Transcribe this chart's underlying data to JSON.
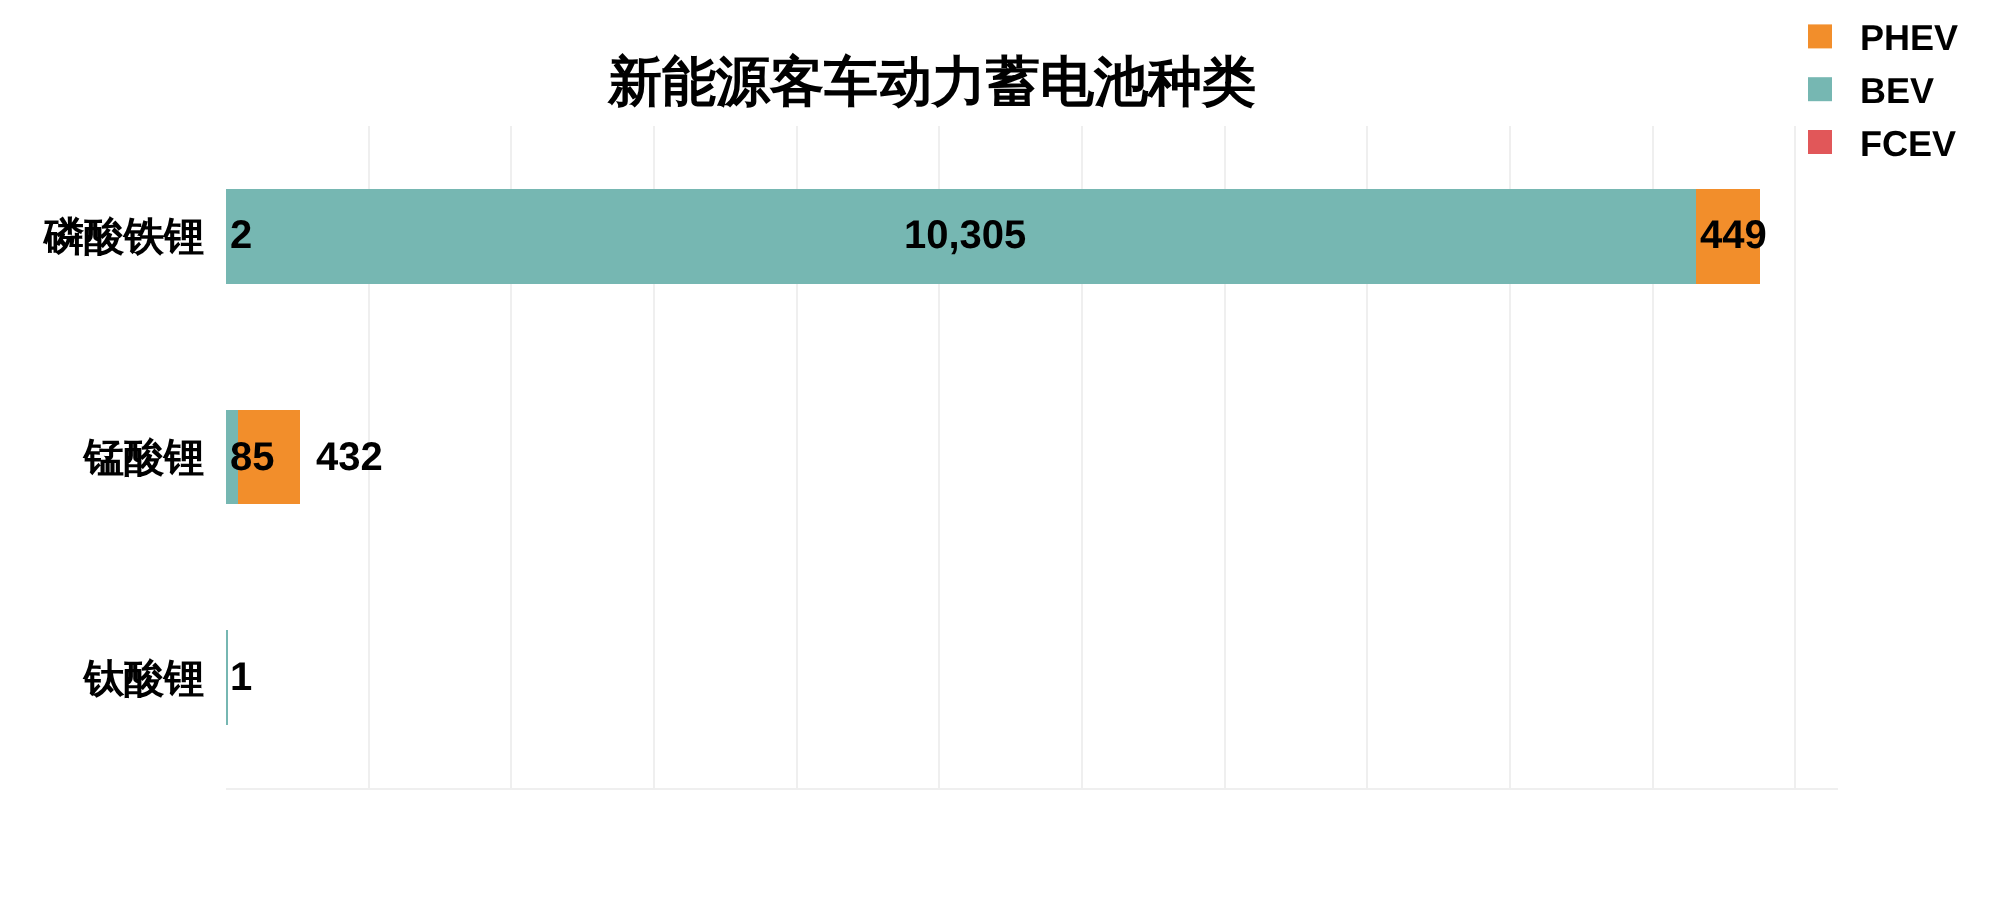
{
  "chart_data": {
    "type": "bar",
    "orientation": "horizontal",
    "stacked": true,
    "title": "新能源客车动力蓄电池种类",
    "categories": [
      "磷酸铁锂",
      "锰酸锂",
      "钛酸锂"
    ],
    "series": [
      {
        "name": "FCEV",
        "color": "#e15759",
        "values": [
          2,
          null,
          null
        ],
        "value_labels": [
          "2",
          null,
          null
        ]
      },
      {
        "name": "BEV",
        "color": "#76b7b2",
        "values": [
          10305,
          85,
          1
        ],
        "value_labels": [
          "10,305",
          "85",
          "1"
        ]
      },
      {
        "name": "PHEV",
        "color": "#f28e2b",
        "values": [
          449,
          432,
          null
        ],
        "value_labels": [
          "449",
          "432",
          null
        ]
      }
    ],
    "xlim": [
      0,
      11300
    ],
    "grid": "x",
    "tick_labels": "y",
    "legend": "top right"
  }
}
